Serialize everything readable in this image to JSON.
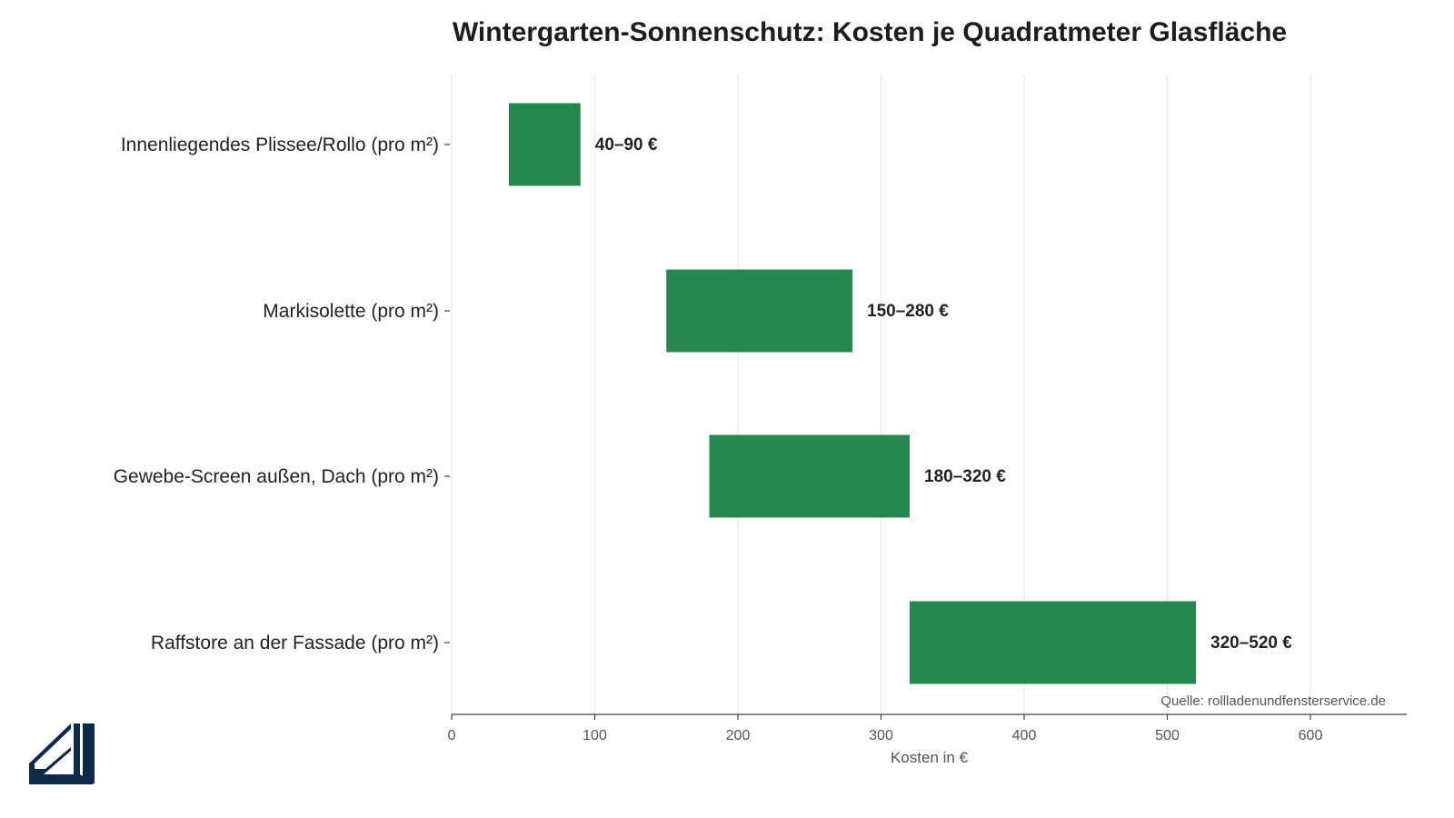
{
  "chart_data": {
    "type": "bar",
    "orientation": "horizontal",
    "style": "floating-range",
    "title": "Wintergarten-Sonnenschutz: Kosten je Quadratmeter Glasfläche",
    "xlabel": "Kosten in €",
    "ylabel": "",
    "xlim": [
      0,
      665
    ],
    "xticks": [
      0,
      100,
      200,
      300,
      400,
      500,
      600
    ],
    "grid": "vertical",
    "bar_color": "#27884f",
    "categories": [
      "Innenliegendes Plissee/Rollo (pro m²)",
      "Markisolette (pro m²)",
      "Gewebe-Screen außen, Dach (pro m²)",
      "Raffstore an der Fassade (pro m²)"
    ],
    "ranges": [
      [
        40,
        90
      ],
      [
        150,
        280
      ],
      [
        180,
        320
      ],
      [
        320,
        520
      ]
    ],
    "data_labels": [
      "40–90 €",
      "150–280 €",
      "180–320 €",
      "320–520 €"
    ],
    "source": "Quelle: rollladenundfensterservice.de"
  },
  "logo": {
    "name": "window-corner-logo",
    "color": "#0d2a4a"
  }
}
